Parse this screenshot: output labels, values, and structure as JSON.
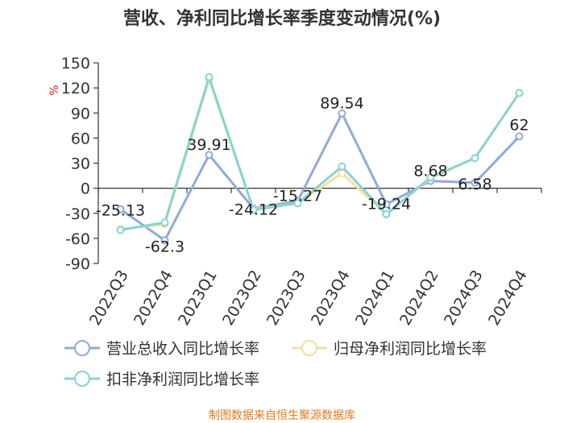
{
  "chart_data": {
    "type": "line",
    "title": "营收、净利同比增长率季度变动情况(%)",
    "y_unit": "%",
    "categories": [
      "2022Q3",
      "2022Q4",
      "2023Q1",
      "2023Q2",
      "2023Q3",
      "2023Q4",
      "2024Q1",
      "2024Q2",
      "2024Q3",
      "2024Q4"
    ],
    "ylim": [
      -90,
      150
    ],
    "yticks": [
      -90,
      -60,
      -30,
      0,
      30,
      60,
      90,
      120,
      150
    ],
    "grid": false,
    "legend_position": "bottom",
    "series": [
      {
        "name": "营业总收入同比增长率",
        "color": "#8eabd8",
        "values": [
          -25.13,
          -62.3,
          39.91,
          -24.12,
          -15.27,
          89.54,
          -19.24,
          8.68,
          6.58,
          62
        ],
        "labels": [
          "-25.13",
          "-62.3",
          "39.91",
          "-24.12",
          "-15.27",
          "89.54",
          "-19.24",
          "8.68",
          "6.58",
          "62"
        ]
      },
      {
        "name": "归母净利润同比增长率",
        "color": "#f7dea0",
        "values": [
          -49,
          -43,
          130,
          -25,
          -18,
          18,
          -31,
          12,
          36,
          114
        ]
      },
      {
        "name": "扣非净利润同比增长率",
        "color": "#86d4d2",
        "values": [
          -50,
          -41,
          133,
          -26,
          -18,
          26,
          -31,
          13,
          36,
          114
        ]
      }
    ]
  },
  "footer": "制图数据来自恒生聚源数据库"
}
